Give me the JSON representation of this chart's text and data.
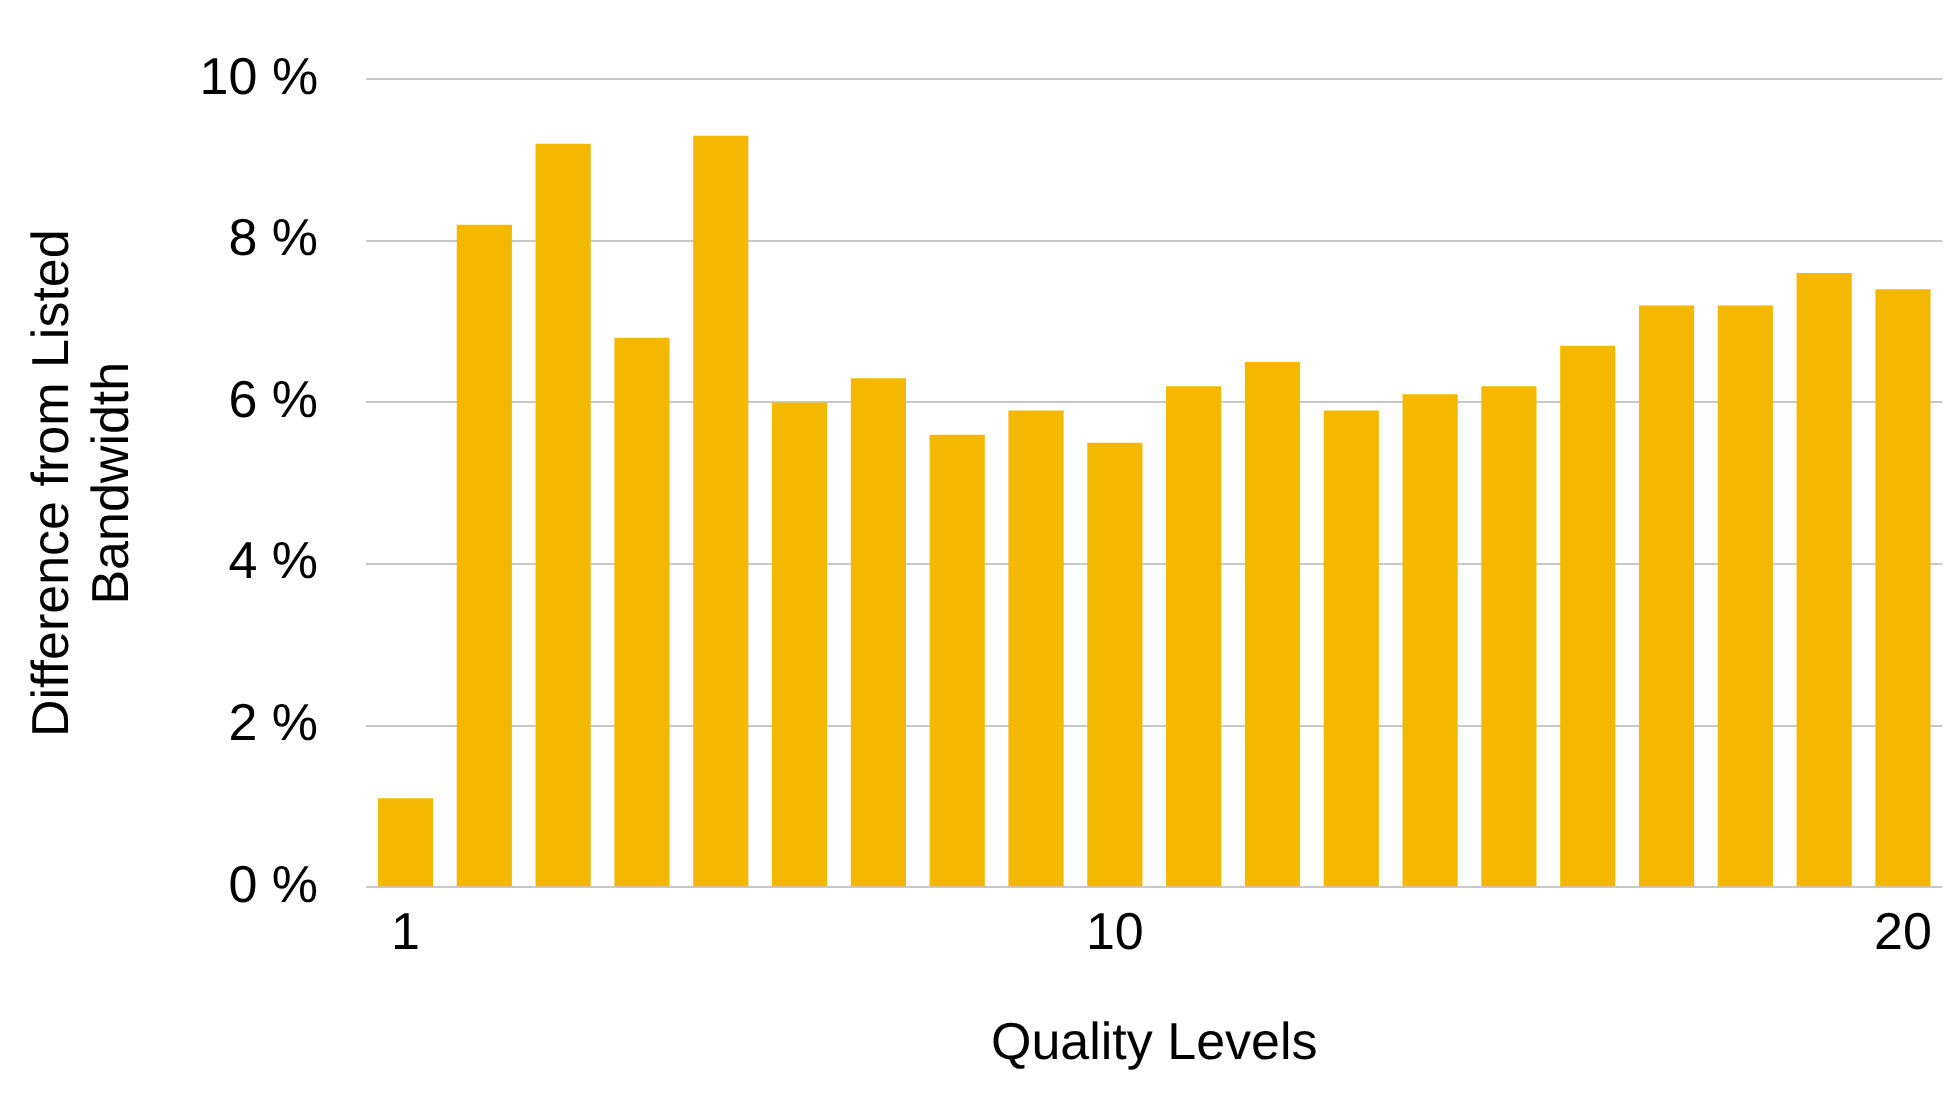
{
  "chart_data": {
    "type": "bar",
    "xlabel": "Quality Levels",
    "ylabel": "Difference from Listed Bandwidth",
    "categories": [
      "1",
      null,
      null,
      null,
      null,
      null,
      null,
      null,
      null,
      "10",
      null,
      null,
      null,
      null,
      null,
      null,
      null,
      null,
      null,
      "20"
    ],
    "values": [
      1.1,
      8.2,
      9.2,
      6.8,
      9.3,
      6.0,
      6.3,
      5.6,
      5.9,
      5.5,
      6.2,
      6.5,
      5.9,
      6.1,
      6.2,
      6.7,
      7.2,
      7.2,
      7.6,
      7.4
    ],
    "color": "#f5b800",
    "ylim": [
      0,
      10
    ],
    "yticks": [
      {
        "value": 0,
        "label": "0 %"
      },
      {
        "value": 2,
        "label": "2 %"
      },
      {
        "value": 4,
        "label": "4 %"
      },
      {
        "value": 6,
        "label": "6 %"
      },
      {
        "value": 8,
        "label": "8 %"
      },
      {
        "value": 10,
        "label": "10 %"
      }
    ],
    "grid": "y"
  }
}
